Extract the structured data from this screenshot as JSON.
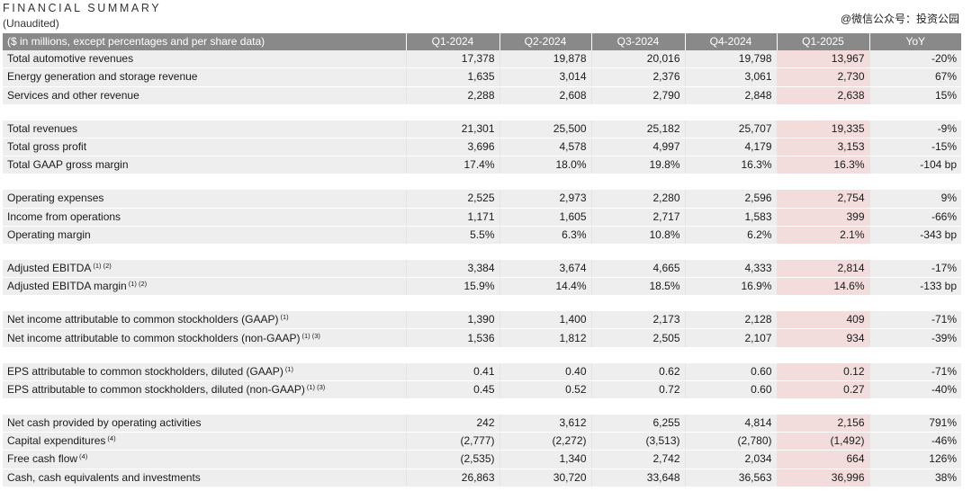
{
  "header": {
    "title": "FINANCIAL SUMMARY",
    "subtitle": "(Unaudited)",
    "watermark": "@微信公众号：投资公园"
  },
  "table": {
    "columns": [
      "($ in millions, except percentages and per share data)",
      "Q1-2024",
      "Q2-2024",
      "Q3-2024",
      "Q4-2024",
      "Q1-2025",
      "YoY"
    ],
    "groups": [
      [
        {
          "label": "Total automotive revenues",
          "sup": "",
          "values": [
            "17,378",
            "19,878",
            "20,016",
            "19,798",
            "13,967",
            "-20%"
          ]
        },
        {
          "label": "Energy generation and storage revenue",
          "sup": "",
          "values": [
            "1,635",
            "3,014",
            "2,376",
            "3,061",
            "2,730",
            "67%"
          ]
        },
        {
          "label": "Services and other revenue",
          "sup": "",
          "values": [
            "2,288",
            "2,608",
            "2,790",
            "2,848",
            "2,638",
            "15%"
          ]
        }
      ],
      [
        {
          "label": "Total revenues",
          "sup": "",
          "values": [
            "21,301",
            "25,500",
            "25,182",
            "25,707",
            "19,335",
            "-9%"
          ]
        },
        {
          "label": "Total gross profit",
          "sup": "",
          "values": [
            "3,696",
            "4,578",
            "4,997",
            "4,179",
            "3,153",
            "-15%"
          ]
        },
        {
          "label": "Total GAAP gross margin",
          "sup": "",
          "values": [
            "17.4%",
            "18.0%",
            "19.8%",
            "16.3%",
            "16.3%",
            "-104 bp"
          ]
        }
      ],
      [
        {
          "label": "Operating expenses",
          "sup": "",
          "values": [
            "2,525",
            "2,973",
            "2,280",
            "2,596",
            "2,754",
            "9%"
          ]
        },
        {
          "label": "Income from operations",
          "sup": "",
          "values": [
            "1,171",
            "1,605",
            "2,717",
            "1,583",
            "399",
            "-66%"
          ]
        },
        {
          "label": "Operating margin",
          "sup": "",
          "values": [
            "5.5%",
            "6.3%",
            "10.8%",
            "6.2%",
            "2.1%",
            "-343 bp"
          ]
        }
      ],
      [
        {
          "label": "Adjusted EBITDA",
          "sup": "(1) (2)",
          "values": [
            "3,384",
            "3,674",
            "4,665",
            "4,333",
            "2,814",
            "-17%"
          ]
        },
        {
          "label": "Adjusted EBITDA margin",
          "sup": "(1) (2)",
          "values": [
            "15.9%",
            "14.4%",
            "18.5%",
            "16.9%",
            "14.6%",
            "-133 bp"
          ]
        }
      ],
      [
        {
          "label": "Net income attributable to common stockholders (GAAP)",
          "sup": "(1)",
          "values": [
            "1,390",
            "1,400",
            "2,173",
            "2,128",
            "409",
            "-71%"
          ]
        },
        {
          "label": "Net income attributable to common stockholders (non-GAAP)",
          "sup": "(1) (3)",
          "values": [
            "1,536",
            "1,812",
            "2,505",
            "2,107",
            "934",
            "-39%"
          ]
        }
      ],
      [
        {
          "label": "EPS attributable to common stockholders, diluted (GAAP)",
          "sup": "(1)",
          "values": [
            "0.41",
            "0.40",
            "0.62",
            "0.60",
            "0.12",
            "-71%"
          ]
        },
        {
          "label": "EPS attributable to common stockholders, diluted (non-GAAP)",
          "sup": "(1) (3)",
          "values": [
            "0.45",
            "0.52",
            "0.72",
            "0.60",
            "0.27",
            "-40%"
          ]
        }
      ],
      [
        {
          "label": "Net cash provided by operating activities",
          "sup": "",
          "values": [
            "242",
            "3,612",
            "6,255",
            "4,814",
            "2,156",
            "791%"
          ]
        },
        {
          "label": "Capital expenditures",
          "sup": "(4)",
          "values": [
            "(2,777)",
            "(2,272)",
            "(3,513)",
            "(2,780)",
            "(1,492)",
            "-46%"
          ]
        },
        {
          "label": "Free cash flow",
          "sup": "(4)",
          "values": [
            "(2,535)",
            "1,340",
            "2,742",
            "2,034",
            "664",
            "126%"
          ]
        },
        {
          "label": "Cash, cash equivalents and investments",
          "sup": "",
          "values": [
            "26,863",
            "30,720",
            "33,648",
            "36,563",
            "36,996",
            "38%"
          ]
        }
      ]
    ],
    "highlight_column": "Q1-2025",
    "colors": {
      "header_bg": "#898989",
      "row_bg": "#eeeeee",
      "highlight_bg": "#f2dcdc"
    }
  }
}
